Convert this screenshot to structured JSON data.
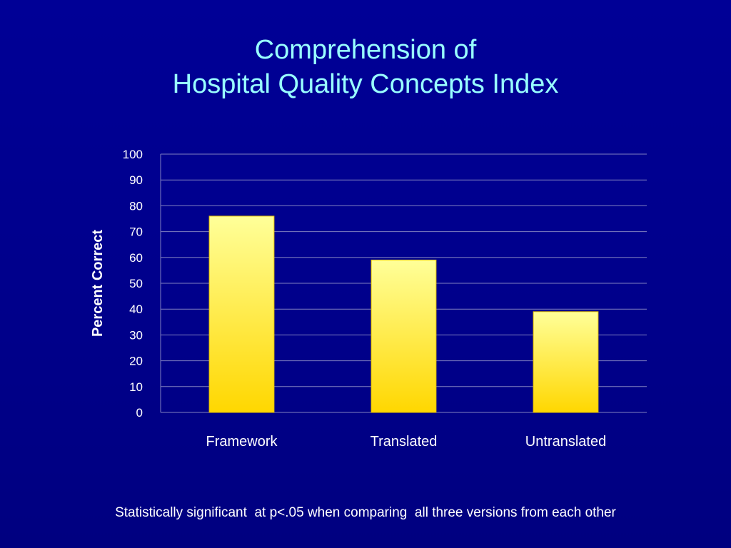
{
  "slide": {
    "title_line1": "Comprehension of",
    "title_line2": "Hospital Quality Concepts Index",
    "footnote": "Statistically significant  at p<.05 when comparing  all three versions from each other"
  },
  "colors": {
    "background": "#00008c",
    "title": "#99ffff",
    "bar_top": "#ffff99",
    "bar_bottom": "#ffd700",
    "gridline": "#8080c0",
    "text": "#ffffff"
  },
  "chart_data": {
    "type": "bar",
    "title": "",
    "xlabel": "",
    "ylabel": "Percent Correct",
    "categories": [
      "Framework",
      "Translated",
      "Untranslated"
    ],
    "values": [
      76,
      59,
      39
    ],
    "ylim": [
      0,
      100
    ],
    "yticks": [
      0,
      10,
      20,
      30,
      40,
      50,
      60,
      70,
      80,
      90,
      100
    ],
    "grid": true,
    "legend": "none"
  }
}
